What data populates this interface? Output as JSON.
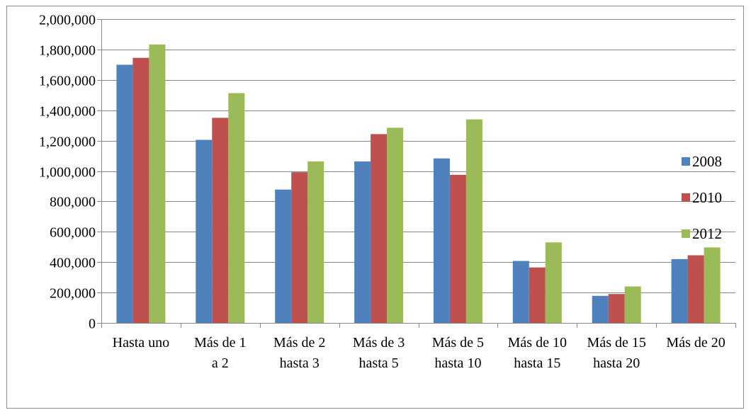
{
  "chart_data": {
    "type": "bar",
    "title": "",
    "xlabel": "",
    "ylabel": "",
    "ylim": [
      0,
      2000000
    ],
    "yticks": [
      0,
      200000,
      400000,
      600000,
      800000,
      1000000,
      1200000,
      1400000,
      1600000,
      1800000,
      2000000
    ],
    "ytick_labels": [
      "0",
      "200,000",
      "400,000",
      "600,000",
      "800,000",
      "1,000,000",
      "1,200,000",
      "1,400,000",
      "1,600,000",
      "1,800,000",
      "2,000,000"
    ],
    "grid": true,
    "legend_position": "right",
    "categories": [
      [
        "Hasta uno"
      ],
      [
        "Más de 1",
        "a 2"
      ],
      [
        "Más de 2",
        "hasta 3"
      ],
      [
        "Más de 3",
        "hasta 5"
      ],
      [
        "Más de 5",
        "hasta 10"
      ],
      [
        "Más de 10",
        "hasta 15"
      ],
      [
        "Más de 15",
        "hasta 20"
      ],
      [
        "Más de 20"
      ]
    ],
    "series": [
      {
        "name": "2008",
        "color": "#4f81bd",
        "values": [
          1700000,
          1205000,
          878000,
          1063000,
          1083000,
          408000,
          178000,
          420000
        ]
      },
      {
        "name": "2010",
        "color": "#c0504d",
        "values": [
          1745000,
          1350000,
          992000,
          1243000,
          975000,
          365000,
          190000,
          445000
        ]
      },
      {
        "name": "2012",
        "color": "#9bbb59",
        "values": [
          1833000,
          1513000,
          1063000,
          1285000,
          1340000,
          530000,
          240000,
          497000
        ]
      }
    ]
  }
}
